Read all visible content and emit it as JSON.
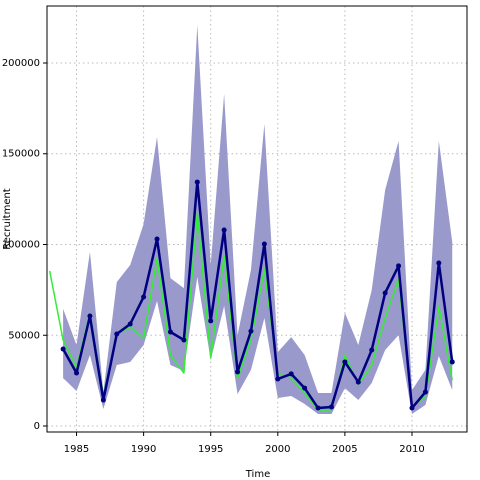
{
  "chart_data": {
    "type": "line",
    "x_label": "Time",
    "y_label": "Recruitment",
    "x": [
      1983,
      1984,
      1985,
      1986,
      1987,
      1988,
      1989,
      1990,
      1991,
      1992,
      1993,
      1994,
      1995,
      1996,
      1997,
      1998,
      1999,
      2000,
      2001,
      2002,
      2003,
      2004,
      2005,
      2006,
      2007,
      2008,
      2009,
      2010,
      2011,
      2012,
      2013
    ],
    "band": {
      "color": "#9999cc",
      "upper": [
        null,
        64500,
        44600,
        95900,
        18700,
        79300,
        88700,
        111300,
        159200,
        81500,
        76000,
        221000,
        88700,
        182900,
        50100,
        86000,
        166400,
        40800,
        49000,
        39100,
        18200,
        18200,
        62300,
        44600,
        74900,
        130000,
        157000,
        19800,
        30900,
        157000,
        101400
      ],
      "lower": [
        null,
        26400,
        19300,
        39100,
        9400,
        33600,
        35300,
        44600,
        68900,
        33600,
        30300,
        82100,
        36400,
        66100,
        17600,
        30900,
        59500,
        15400,
        16500,
        12100,
        6600,
        6600,
        20900,
        14300,
        23700,
        41900,
        50100,
        6600,
        11600,
        38600,
        19800
      ]
    },
    "series": [
      {
        "color": "#33ee33",
        "values": [
          85400,
          47400,
          32000,
          62300,
          16500,
          50700,
          54500,
          48500,
          92600,
          39100,
          29200,
          117400,
          37500,
          93700,
          26400,
          47400,
          86500,
          28700,
          26400,
          18200,
          8800,
          8800,
          39100,
          22600,
          33600,
          59500,
          81000,
          11000,
          16000,
          65600,
          25300
        ]
      },
      {
        "color": "#000080",
        "markers": true,
        "values": [
          null,
          42400,
          29200,
          60600,
          14300,
          50700,
          56200,
          71100,
          103000,
          51800,
          47400,
          134400,
          57900,
          108000,
          29800,
          52300,
          100300,
          25900,
          28700,
          20900,
          9900,
          10500,
          35300,
          24200,
          41900,
          73300,
          88200,
          9900,
          18700,
          89800,
          35300
        ]
      }
    ],
    "xlim": [
      1982.8,
      2014.1
    ],
    "ylim": [
      -3300,
      231400
    ],
    "xticks": [
      1985,
      1990,
      1995,
      2000,
      2005,
      2010
    ],
    "yticks": [
      0,
      50000,
      100000,
      150000,
      200000
    ],
    "grid": true
  }
}
